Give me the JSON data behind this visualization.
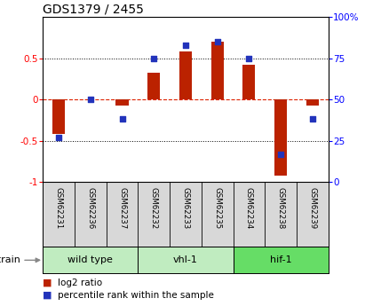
{
  "title": "GDS1379 / 2455",
  "samples": [
    "GSM62231",
    "GSM62236",
    "GSM62237",
    "GSM62232",
    "GSM62233",
    "GSM62235",
    "GSM62234",
    "GSM62238",
    "GSM62239"
  ],
  "log2_ratio": [
    -0.42,
    0.0,
    -0.07,
    0.32,
    0.58,
    0.7,
    0.42,
    -0.92,
    -0.07
  ],
  "percentile_rank": [
    27,
    50,
    38,
    75,
    83,
    85,
    75,
    17,
    38
  ],
  "group_boundaries": [
    {
      "start": 0,
      "end": 2,
      "label": "wild type",
      "color": "#c0ecc0"
    },
    {
      "start": 3,
      "end": 5,
      "label": "vhl-1",
      "color": "#c0ecc0"
    },
    {
      "start": 6,
      "end": 8,
      "label": "hif-1",
      "color": "#66dd66"
    }
  ],
  "ylim": [
    -1,
    1
  ],
  "yticks_left": [
    -1,
    -0.5,
    0,
    0.5
  ],
  "yticks_right": [
    0,
    25,
    50,
    75,
    100
  ],
  "bar_color": "#bb2200",
  "dot_color": "#2233bb",
  "zero_line_color": "#dd2200",
  "bg_color": "#d8d8d8",
  "plot_bg": "#ffffff",
  "strain_label": "strain",
  "legend_log2": "log2 ratio",
  "legend_pct": "percentile rank within the sample",
  "bar_width": 0.4
}
